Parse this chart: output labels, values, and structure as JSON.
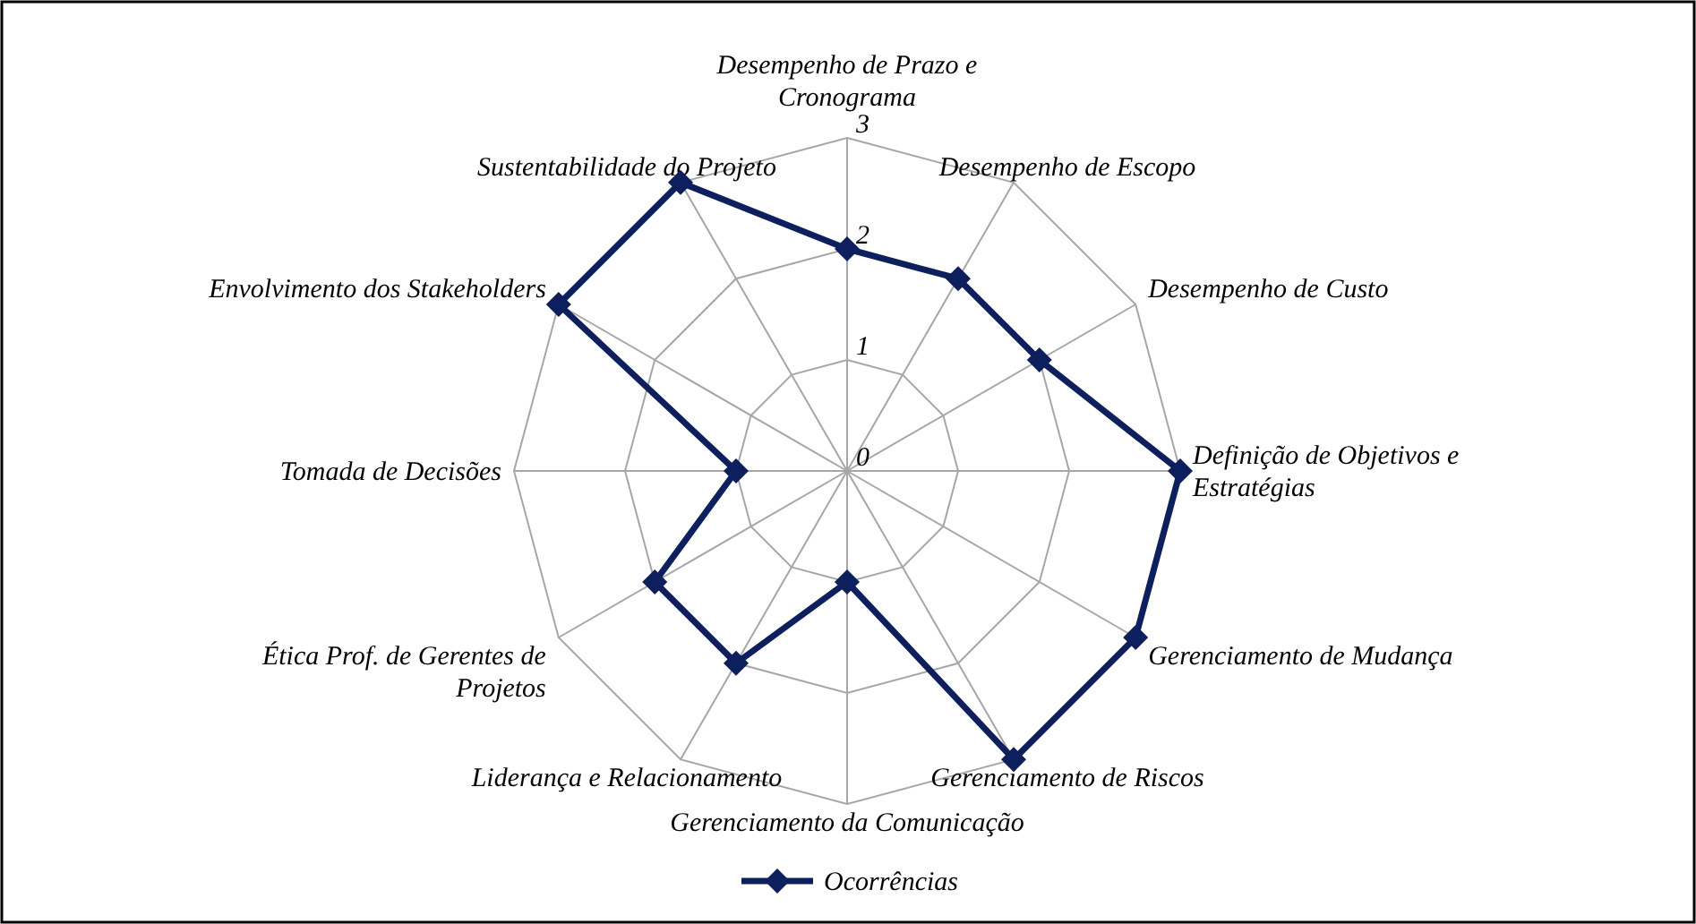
{
  "chart_data": {
    "type": "radar",
    "categories": [
      "Desempenho de Prazo e Cronograma",
      "Desempenho de Escopo",
      "Desempenho de Custo",
      "Definição de Objetivos e Estratégias",
      "Gerenciamento de Mudança",
      "Gerenciamento de Riscos",
      "Gerenciamento da Comunicação",
      "Liderança e Relacionamento",
      "Ética Prof. de Gerentes de Projetos",
      "Tomada de Decisões",
      "Envolvimento dos Stakeholders",
      "Sustentabilidade do Projeto"
    ],
    "series": [
      {
        "name": "Ocorrências",
        "color": "#0d1f5c",
        "values": [
          2,
          2,
          2,
          3,
          3,
          3,
          1,
          2,
          2,
          1,
          3,
          3
        ]
      }
    ],
    "ylim": [
      0,
      3
    ],
    "yticks": [
      0,
      1,
      2,
      3
    ],
    "grid": true,
    "legend": "bottom",
    "marker": "diamond",
    "line_style": "solid"
  }
}
